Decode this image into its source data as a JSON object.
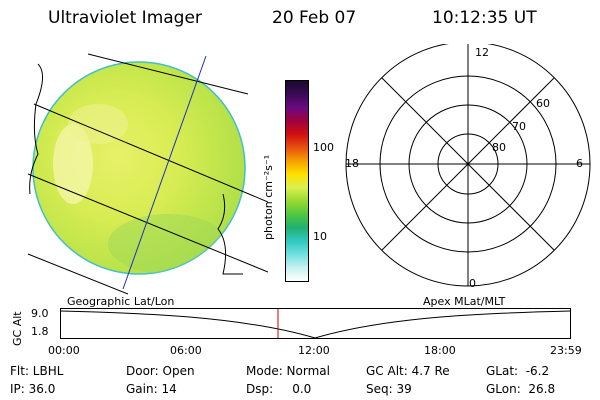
{
  "header": {
    "instrument": "Ultraviolet Imager",
    "date": "20 Feb 07",
    "time": "10:12:35 UT"
  },
  "colorbar": {
    "label": "photon cm⁻²s⁻¹",
    "tick_100": "100",
    "tick_10": "10",
    "colors": [
      "#1a0a2e",
      "#3a0a55",
      "#6a0a80",
      "#a00040",
      "#d01010",
      "#e85010",
      "#f5a000",
      "#ffe000",
      "#d8f050",
      "#9ad830",
      "#50c840",
      "#20b070",
      "#30c8c0",
      "#70e0e0",
      "#c8f0f0",
      "#ffffff"
    ]
  },
  "left_map": {
    "caption": "Geographic Lat/Lon"
  },
  "right_grid": {
    "caption": "Apex MLat/MLT",
    "mlt_12": "12",
    "mlt_18": "18",
    "mlt_6": "6",
    "mlt_0": "0",
    "lat_60": "60",
    "lat_70": "70",
    "lat_80": "80"
  },
  "altitude_plot": {
    "ylabel": "GC Alt",
    "ytick_top": "9.0",
    "ytick_bottom": "1.8",
    "xticks": [
      "00:00",
      "06:00",
      "12:00",
      "18:00",
      "23:59"
    ],
    "marker_color": "#cc0000"
  },
  "status": {
    "filter": "Flt: LBHL",
    "door": "Door: Open",
    "mode": "Mode: Normal",
    "gc_alt": "GC Alt: 4.7 Re",
    "glat": "GLat:  -6.2",
    "ip": "IP: 36.0",
    "gain": "Gain: 14",
    "dsp": "Dsp:     0.0",
    "seq": "Seq: 39",
    "glon": "GLon:  26.8"
  }
}
